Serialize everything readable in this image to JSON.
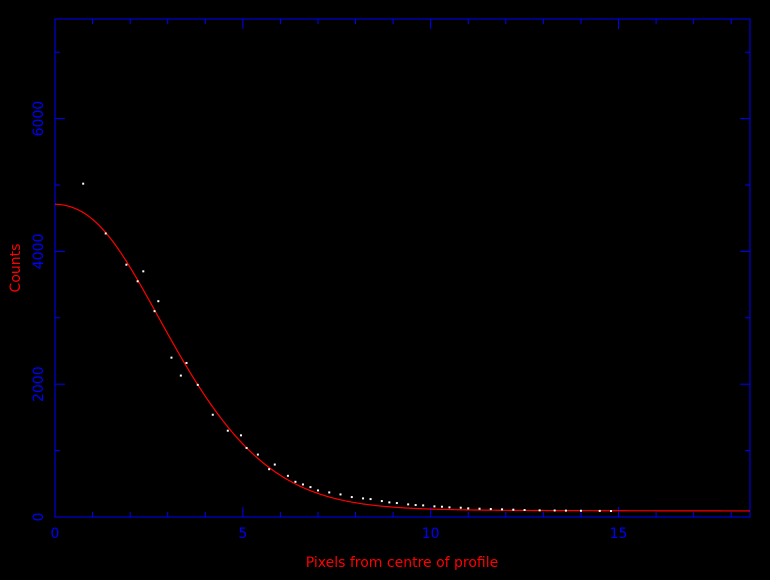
{
  "chart_data": {
    "type": "scatter",
    "xlabel": "Pixels from centre of profile",
    "ylabel": "Counts",
    "xlim": [
      0,
      18.5
    ],
    "ylim": [
      0,
      7500
    ],
    "x_ticks": [
      0,
      5,
      10,
      15
    ],
    "y_ticks": [
      0,
      2000,
      4000,
      6000
    ],
    "x_tick_labels": [
      "0",
      "5",
      "10",
      "15"
    ],
    "y_tick_labels": [
      "0",
      "2000",
      "4000",
      "6000"
    ],
    "background": "#000000",
    "axis_color": "#0000ff",
    "label_color": "#ff0000",
    "point_color": "#ffffff",
    "fit_color": "#ff0000",
    "series": [
      {
        "kind": "points",
        "points": [
          [
            0.75,
            5020
          ],
          [
            1.35,
            4270
          ],
          [
            1.9,
            3800
          ],
          [
            2.2,
            3550
          ],
          [
            2.35,
            3700
          ],
          [
            2.65,
            3100
          ],
          [
            2.75,
            3250
          ],
          [
            3.1,
            2400
          ],
          [
            3.35,
            2130
          ],
          [
            3.5,
            2320
          ],
          [
            3.8,
            1990
          ],
          [
            4.2,
            1540
          ],
          [
            4.6,
            1300
          ],
          [
            4.95,
            1230
          ],
          [
            5.1,
            1040
          ],
          [
            5.4,
            940
          ],
          [
            5.7,
            720
          ],
          [
            5.85,
            790
          ],
          [
            6.2,
            620
          ],
          [
            6.4,
            530
          ],
          [
            6.6,
            490
          ],
          [
            6.8,
            450
          ],
          [
            7.0,
            400
          ],
          [
            7.3,
            370
          ],
          [
            7.6,
            340
          ],
          [
            7.9,
            300
          ],
          [
            8.2,
            280
          ],
          [
            8.4,
            270
          ],
          [
            8.7,
            240
          ],
          [
            8.9,
            220
          ],
          [
            9.1,
            210
          ],
          [
            9.4,
            190
          ],
          [
            9.6,
            180
          ],
          [
            9.8,
            175
          ],
          [
            10.1,
            160
          ],
          [
            10.3,
            155
          ],
          [
            10.5,
            145
          ],
          [
            10.8,
            140
          ],
          [
            11.0,
            130
          ],
          [
            11.3,
            125
          ],
          [
            11.6,
            120
          ],
          [
            11.9,
            115
          ],
          [
            12.2,
            110
          ],
          [
            12.5,
            105
          ],
          [
            12.9,
            100
          ],
          [
            13.3,
            98
          ],
          [
            13.6,
            96
          ],
          [
            14.0,
            94
          ],
          [
            14.5,
            92
          ],
          [
            14.8,
            90
          ]
        ]
      },
      {
        "kind": "fit",
        "peak": 5130,
        "background": 90,
        "sigma": 2.7,
        "exponent": 1.9,
        "wing_amplitude": 420,
        "wing_scale": 3.2
      }
    ]
  }
}
